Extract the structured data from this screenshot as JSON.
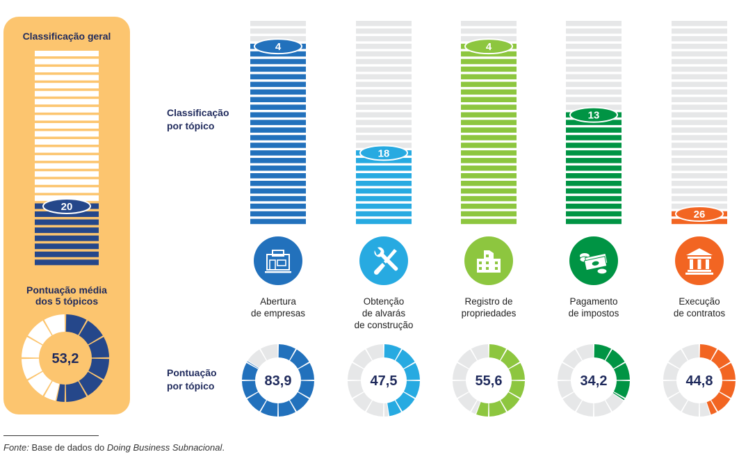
{
  "overall": {
    "title": "Classificação geral",
    "rank": 20,
    "rank_label": "20",
    "avg_label": "Pontuação média\ndos 5 tópicos",
    "avg_score": 53.2,
    "avg_score_label": "53,2",
    "color": "#25478a",
    "stripe_empty_color": "#ffffff",
    "ring_empty_color": "#ffffff"
  },
  "labels": {
    "rank_by_topic": "Classificação\npor tópico",
    "score_by_topic": "Pontuação\npor tópico"
  },
  "source": {
    "prefix": "Fonte:",
    "text": " Base de dados do ",
    "italic": "Doing Business Subnacional",
    "suffix": "."
  },
  "chart_data": {
    "type": "bar",
    "title": "Classificação por tópico / Pontuação por tópico",
    "categories": [
      "Abertura de empresas",
      "Obtenção de alvarás de construção",
      "Registro de propriedades",
      "Pagamento de impostos",
      "Execução de contratos"
    ],
    "series": [
      {
        "name": "Classificação por tópico",
        "values": [
          4,
          18,
          4,
          13,
          26
        ]
      },
      {
        "name": "Pontuação por tópico",
        "values": [
          83.9,
          47.5,
          55.6,
          34.2,
          44.8
        ]
      }
    ],
    "rank_scale_max": 27,
    "score_scale_max": 100,
    "overall_rank": 20,
    "overall_score": 53.2
  },
  "topics": [
    {
      "label": "Abertura\nde empresas",
      "rank": 4,
      "rank_label": "4",
      "score": 83.9,
      "score_label": "83,9",
      "color": "#2271bc",
      "icon": "storefront-icon"
    },
    {
      "label": "Obtenção\nde alvarás\nde construção",
      "rank": 18,
      "rank_label": "18",
      "score": 47.5,
      "score_label": "47,5",
      "color": "#27aae1",
      "icon": "tools-icon"
    },
    {
      "label": "Registro de\npropriedades",
      "rank": 4,
      "rank_label": "4",
      "score": 55.6,
      "score_label": "55,6",
      "color": "#8dc63f",
      "icon": "building-icon"
    },
    {
      "label": "Pagamento\nde impostos",
      "rank": 13,
      "rank_label": "13",
      "score": 34.2,
      "score_label": "34,2",
      "color": "#009444",
      "icon": "money-icon"
    },
    {
      "label": "Execução\nde contratos",
      "rank": 26,
      "rank_label": "26",
      "score": 44.8,
      "score_label": "44,8",
      "color": "#f26522",
      "icon": "courthouse-icon"
    }
  ],
  "colors": {
    "empty_stripe": "#e6e7e8",
    "empty_ring": "#e6e7e8",
    "text_dark": "#1f2a5c"
  }
}
